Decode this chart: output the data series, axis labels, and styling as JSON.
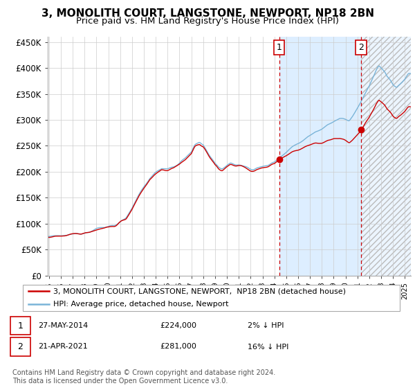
{
  "title": "3, MONOLITH COURT, LANGSTONE, NEWPORT, NP18 2BN",
  "subtitle": "Price paid vs. HM Land Registry's House Price Index (HPI)",
  "yticks": [
    0,
    50000,
    100000,
    150000,
    200000,
    250000,
    300000,
    350000,
    400000,
    450000
  ],
  "ytick_labels": [
    "£0",
    "£50K",
    "£100K",
    "£150K",
    "£200K",
    "£250K",
    "£300K",
    "£350K",
    "£400K",
    "£450K"
  ],
  "xmin": 1994.9,
  "xmax": 2025.5,
  "ymin": 0,
  "ymax": 460000,
  "event1_x": 2014.41,
  "event1_y": 224000,
  "event2_x": 2021.31,
  "event2_y": 281000,
  "legend_entry1": "3, MONOLITH COURT, LANGSTONE, NEWPORT,  NP18 2BN (detached house)",
  "legend_entry2": "HPI: Average price, detached house, Newport",
  "table_row1": [
    "1",
    "27-MAY-2014",
    "£224,000",
    "2% ↓ HPI"
  ],
  "table_row2": [
    "2",
    "21-APR-2021",
    "£281,000",
    "16% ↓ HPI"
  ],
  "footer": "Contains HM Land Registry data © Crown copyright and database right 2024.\nThis data is licensed under the Open Government Licence v3.0.",
  "hpi_line_color": "#7ab4d8",
  "price_line_color": "#cc0000",
  "dot_color": "#cc0000",
  "vline_color": "#cc0000",
  "span_color": "#ddeeff",
  "hatch_color": "#cccccc",
  "background_color": "#ffffff",
  "plot_bg_color": "#ffffff",
  "grid_color": "#cccccc",
  "title_fontsize": 11,
  "subtitle_fontsize": 9.5,
  "axis_fontsize": 8.5,
  "tick_fontsize": 7,
  "legend_fontsize": 8,
  "table_fontsize": 8,
  "footer_fontsize": 7
}
